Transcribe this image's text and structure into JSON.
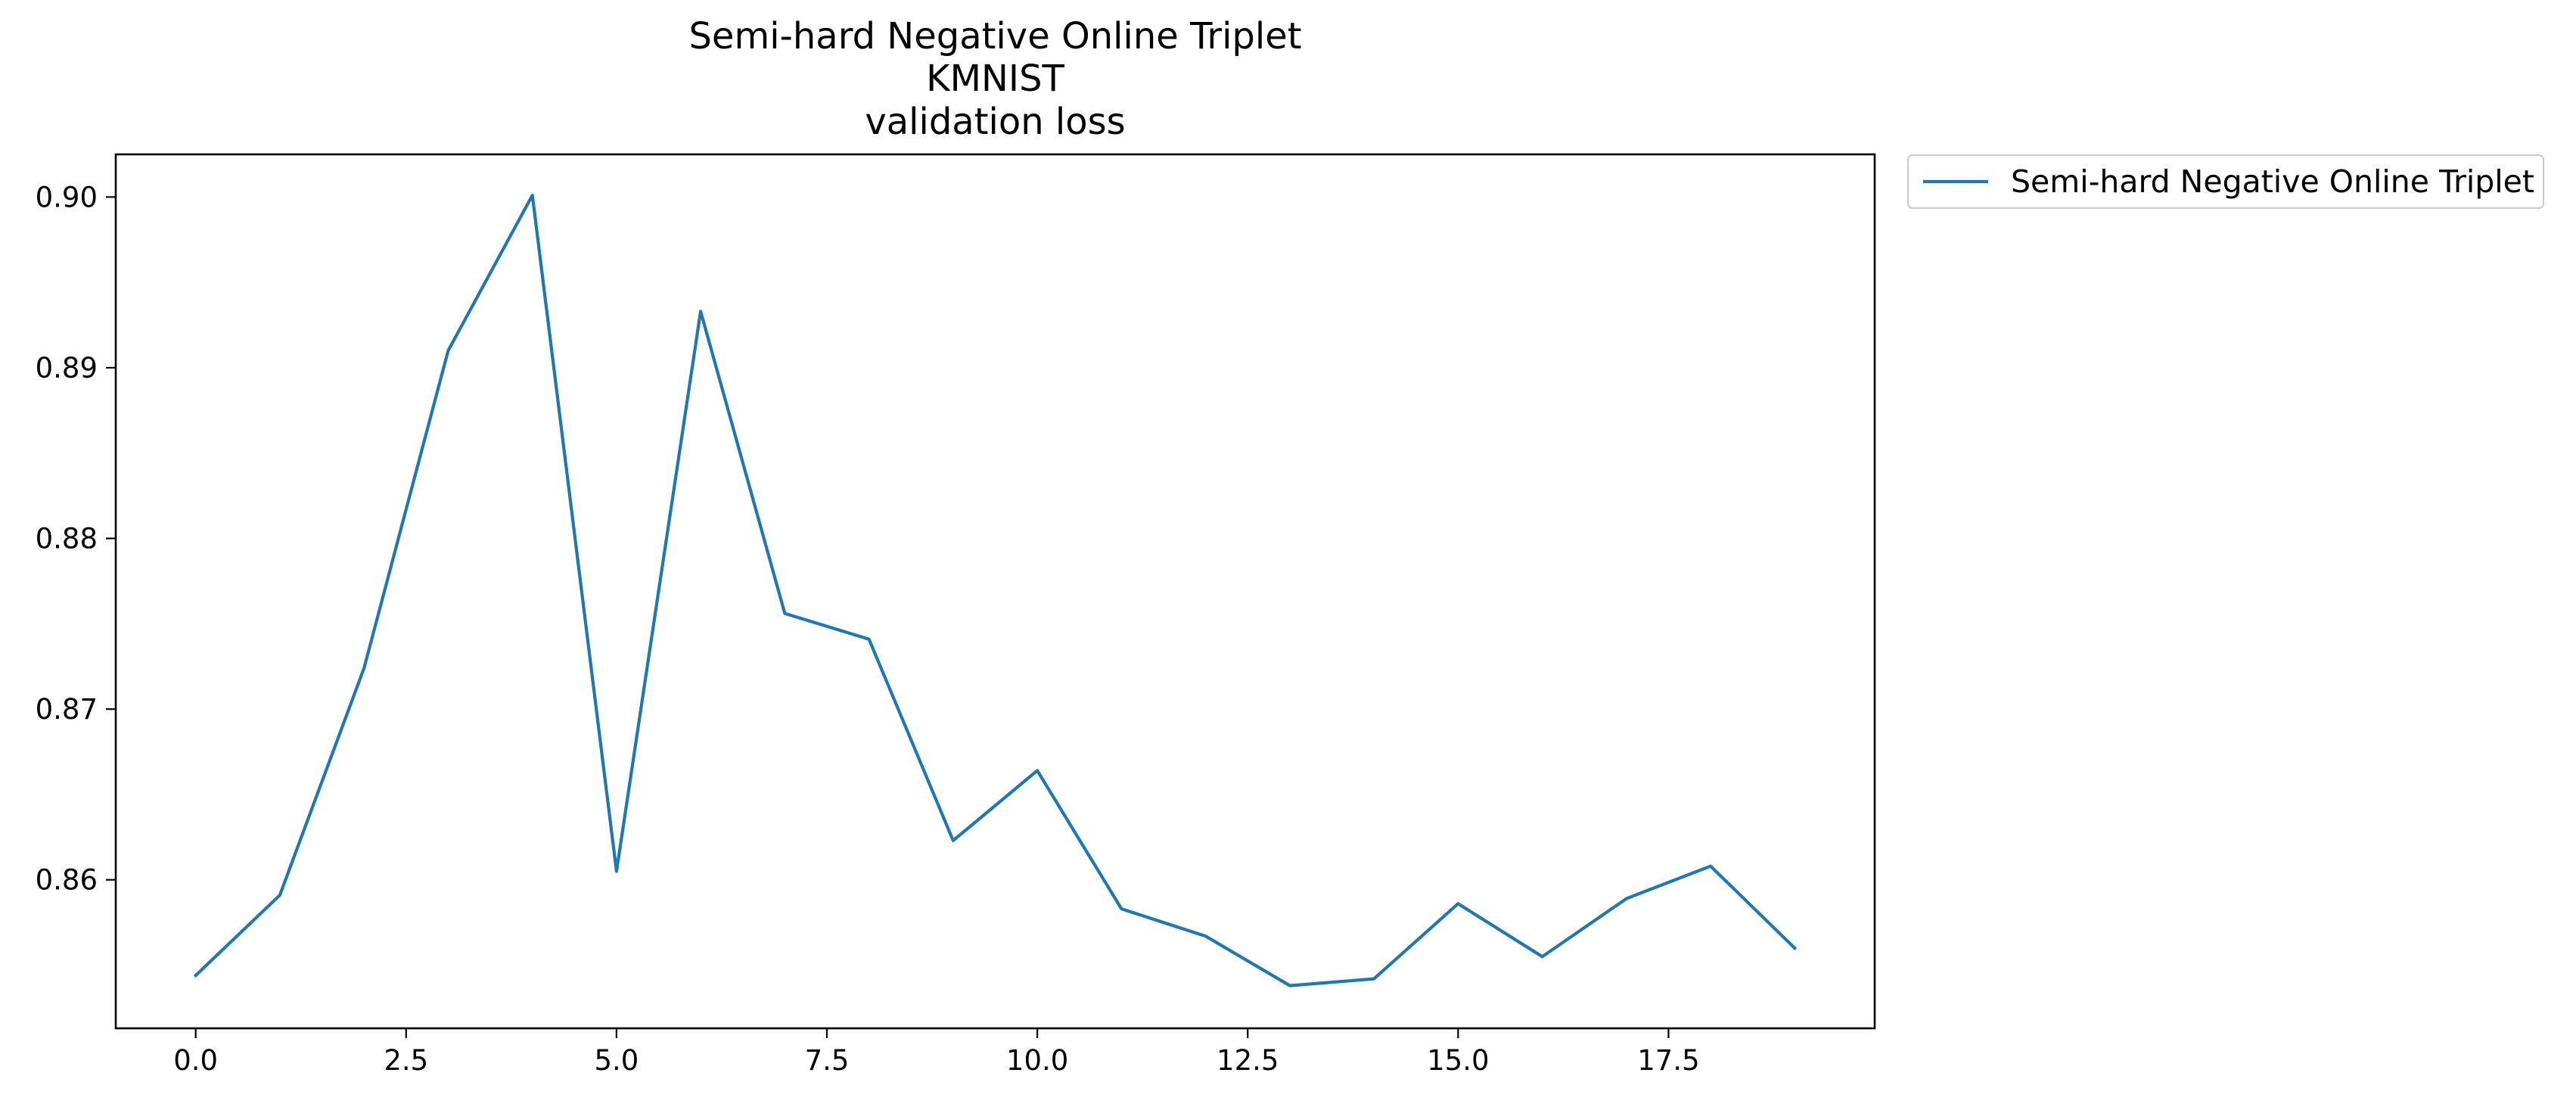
{
  "chart_data": {
    "type": "line",
    "title_lines": [
      "Semi-hard Negative Online Triplet",
      "KMNIST",
      "validation loss"
    ],
    "xlabel": "",
    "ylabel": "",
    "xlim": [
      -0.95,
      19.95
    ],
    "ylim": [
      0.8513,
      0.9025
    ],
    "xticks": [
      0.0,
      2.5,
      5.0,
      7.5,
      10.0,
      12.5,
      15.0,
      17.5
    ],
    "xtick_labels": [
      "0.0",
      "2.5",
      "5.0",
      "7.5",
      "10.0",
      "12.5",
      "15.0",
      "17.5"
    ],
    "yticks": [
      0.86,
      0.87,
      0.88,
      0.89,
      0.9
    ],
    "ytick_labels": [
      "0.86",
      "0.87",
      "0.88",
      "0.89",
      "0.90"
    ],
    "grid": false,
    "legend_position": "outside-top-right",
    "series": [
      {
        "name": "Semi-hard Negative Online Triplet",
        "color": "#1f77b4",
        "x": [
          0,
          1,
          2,
          3,
          4,
          5,
          6,
          7,
          8,
          9,
          10,
          11,
          12,
          13,
          14,
          15,
          16,
          17,
          18,
          19
        ],
        "y": [
          0.8544,
          0.8591,
          0.8724,
          0.891,
          0.9001,
          0.8605,
          0.8933,
          0.8756,
          0.8741,
          0.8623,
          0.8664,
          0.8583,
          0.8567,
          0.8538,
          0.8542,
          0.8586,
          0.8555,
          0.8589,
          0.8608,
          0.856
        ]
      }
    ]
  }
}
